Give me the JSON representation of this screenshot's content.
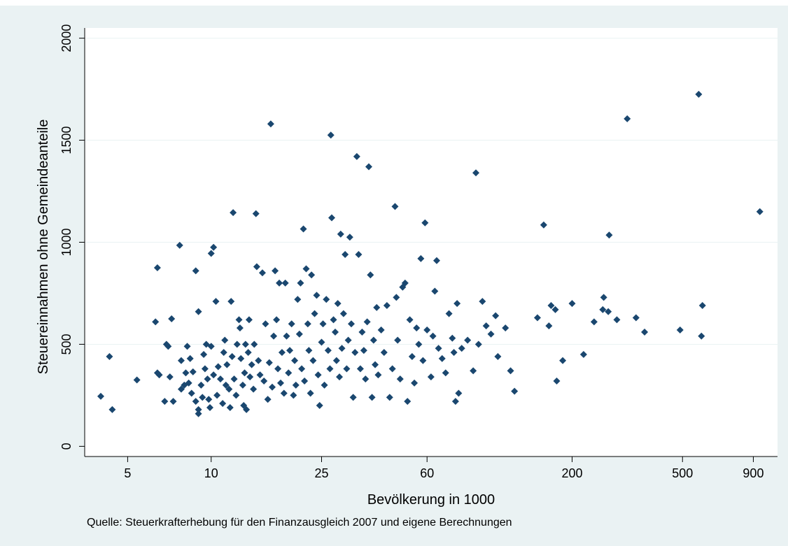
{
  "chart_data": {
    "type": "scatter",
    "xlabel": "Bevölkerung in 1000",
    "ylabel": "Steuereinnahmen ohne Gemeindeanteile",
    "note": "Quelle: Steuerkrafterhebung für den Finanzausgleich 2007 und eigene Berechnungen",
    "x_scale": "log",
    "xlim": [
      3.5,
      1100
    ],
    "ylim": [
      -50,
      2050
    ],
    "x_ticks": [
      5,
      10,
      25,
      60,
      200,
      500,
      900
    ],
    "y_ticks": [
      0,
      500,
      1000,
      1500,
      2000
    ],
    "grid": "horizontal",
    "marker": "diamond",
    "colors": {
      "marker": "#1a476f",
      "plot_bg": "#ffffff",
      "figure_bg": "#eaf2f3",
      "grid": "#eaf2f3"
    },
    "points": [
      [
        4,
        245
      ],
      [
        4.3,
        440
      ],
      [
        4.4,
        180
      ],
      [
        5.4,
        325
      ],
      [
        6.4,
        875
      ],
      [
        6.3,
        610
      ],
      [
        6.4,
        360
      ],
      [
        6.5,
        350
      ],
      [
        6.8,
        220
      ],
      [
        6.9,
        500
      ],
      [
        7.0,
        490
      ],
      [
        7.1,
        340
      ],
      [
        7.2,
        625
      ],
      [
        7.3,
        220
      ],
      [
        7.7,
        985
      ],
      [
        7.8,
        280
      ],
      [
        7.8,
        420
      ],
      [
        8.0,
        300
      ],
      [
        8.1,
        360
      ],
      [
        8.2,
        490
      ],
      [
        8.3,
        310
      ],
      [
        8.4,
        430
      ],
      [
        8.5,
        260
      ],
      [
        8.6,
        365
      ],
      [
        8.8,
        860
      ],
      [
        8.8,
        220
      ],
      [
        9.0,
        660
      ],
      [
        9.0,
        180
      ],
      [
        9.0,
        160
      ],
      [
        9.2,
        300
      ],
      [
        9.3,
        240
      ],
      [
        9.4,
        450
      ],
      [
        9.5,
        380
      ],
      [
        9.6,
        500
      ],
      [
        9.7,
        330
      ],
      [
        9.8,
        230
      ],
      [
        9.9,
        190
      ],
      [
        10.0,
        490
      ],
      [
        10.0,
        945
      ],
      [
        10.2,
        975
      ],
      [
        10.2,
        350
      ],
      [
        10.4,
        710
      ],
      [
        10.5,
        250
      ],
      [
        10.6,
        390
      ],
      [
        10.8,
        330
      ],
      [
        11.0,
        210
      ],
      [
        11.1,
        460
      ],
      [
        11.2,
        520
      ],
      [
        11.3,
        300
      ],
      [
        11.4,
        400
      ],
      [
        11.6,
        280
      ],
      [
        11.7,
        190
      ],
      [
        11.8,
        710
      ],
      [
        11.9,
        440
      ],
      [
        12.0,
        1145
      ],
      [
        12.1,
        330
      ],
      [
        12.3,
        250
      ],
      [
        12.4,
        500
      ],
      [
        12.6,
        620
      ],
      [
        12.7,
        580
      ],
      [
        12.8,
        430
      ],
      [
        13.0,
        300
      ],
      [
        13.1,
        200
      ],
      [
        13.2,
        360
      ],
      [
        13.3,
        500
      ],
      [
        13.4,
        180
      ],
      [
        13.6,
        460
      ],
      [
        13.7,
        620
      ],
      [
        13.8,
        340
      ],
      [
        14.0,
        400
      ],
      [
        14.2,
        280
      ],
      [
        14.3,
        500
      ],
      [
        14.5,
        1140
      ],
      [
        14.6,
        880
      ],
      [
        14.8,
        420
      ],
      [
        15.0,
        350
      ],
      [
        15.3,
        850
      ],
      [
        15.5,
        320
      ],
      [
        15.7,
        600
      ],
      [
        16.0,
        230
      ],
      [
        16.2,
        410
      ],
      [
        16.4,
        1580
      ],
      [
        16.6,
        290
      ],
      [
        16.8,
        540
      ],
      [
        17.0,
        860
      ],
      [
        17.2,
        620
      ],
      [
        17.4,
        380
      ],
      [
        17.6,
        800
      ],
      [
        17.8,
        310
      ],
      [
        18.0,
        460
      ],
      [
        18.3,
        260
      ],
      [
        18.5,
        800
      ],
      [
        18.7,
        540
      ],
      [
        19.0,
        360
      ],
      [
        19.2,
        470
      ],
      [
        19.5,
        600
      ],
      [
        19.8,
        250
      ],
      [
        20.0,
        420
      ],
      [
        20.2,
        300
      ],
      [
        20.5,
        720
      ],
      [
        20.8,
        550
      ],
      [
        21.0,
        800
      ],
      [
        21.2,
        380
      ],
      [
        21.5,
        1065
      ],
      [
        21.7,
        320
      ],
      [
        22.0,
        870
      ],
      [
        22.3,
        600
      ],
      [
        22.5,
        470
      ],
      [
        22.8,
        260
      ],
      [
        23.0,
        840
      ],
      [
        23.3,
        420
      ],
      [
        23.6,
        650
      ],
      [
        24.0,
        740
      ],
      [
        24.3,
        350
      ],
      [
        24.6,
        200
      ],
      [
        25.0,
        510
      ],
      [
        25.3,
        600
      ],
      [
        25.6,
        300
      ],
      [
        26.0,
        720
      ],
      [
        26.4,
        470
      ],
      [
        26.8,
        380
      ],
      [
        27.0,
        1525
      ],
      [
        27.2,
        1120
      ],
      [
        27.6,
        620
      ],
      [
        28.0,
        560
      ],
      [
        28.3,
        420
      ],
      [
        28.6,
        700
      ],
      [
        29.0,
        340
      ],
      [
        29.3,
        1040
      ],
      [
        29.6,
        480
      ],
      [
        30.0,
        650
      ],
      [
        30.4,
        940
      ],
      [
        30.8,
        380
      ],
      [
        31.2,
        520
      ],
      [
        31.6,
        1025
      ],
      [
        32.0,
        600
      ],
      [
        32.5,
        240
      ],
      [
        33.0,
        460
      ],
      [
        33.5,
        1420
      ],
      [
        34.0,
        940
      ],
      [
        34.5,
        380
      ],
      [
        35.0,
        560
      ],
      [
        35.5,
        470
      ],
      [
        36.0,
        330
      ],
      [
        36.5,
        610
      ],
      [
        37.0,
        1370
      ],
      [
        37.5,
        840
      ],
      [
        38.0,
        240
      ],
      [
        38.5,
        520
      ],
      [
        39.0,
        400
      ],
      [
        39.5,
        680
      ],
      [
        40.0,
        350
      ],
      [
        41.0,
        570
      ],
      [
        42.0,
        460
      ],
      [
        43.0,
        690
      ],
      [
        44.0,
        240
      ],
      [
        45.0,
        380
      ],
      [
        46.0,
        1175
      ],
      [
        46.5,
        730
      ],
      [
        47.0,
        520
      ],
      [
        48.0,
        330
      ],
      [
        49.0,
        780
      ],
      [
        50.0,
        800
      ],
      [
        51.0,
        220
      ],
      [
        52.0,
        620
      ],
      [
        53.0,
        440
      ],
      [
        54.0,
        310
      ],
      [
        55.0,
        580
      ],
      [
        56.0,
        500
      ],
      [
        57.0,
        920
      ],
      [
        58.0,
        420
      ],
      [
        59.0,
        1095
      ],
      [
        60.0,
        570
      ],
      [
        62.0,
        340
      ],
      [
        63.0,
        540
      ],
      [
        64.0,
        760
      ],
      [
        65.0,
        910
      ],
      [
        66.0,
        480
      ],
      [
        68.0,
        430
      ],
      [
        70.0,
        360
      ],
      [
        72.0,
        650
      ],
      [
        74.0,
        530
      ],
      [
        75.0,
        460
      ],
      [
        76.0,
        220
      ],
      [
        77.0,
        700
      ],
      [
        78.0,
        260
      ],
      [
        80.0,
        480
      ],
      [
        84.0,
        520
      ],
      [
        88.0,
        370
      ],
      [
        90.0,
        1340
      ],
      [
        92.0,
        500
      ],
      [
        95.0,
        710
      ],
      [
        98.0,
        590
      ],
      [
        102.0,
        550
      ],
      [
        106.0,
        640
      ],
      [
        108.0,
        440
      ],
      [
        115.0,
        580
      ],
      [
        120.0,
        370
      ],
      [
        124.0,
        270
      ],
      [
        150.0,
        630
      ],
      [
        158.0,
        1085
      ],
      [
        165.0,
        590
      ],
      [
        168.0,
        690
      ],
      [
        174.0,
        670
      ],
      [
        176.0,
        320
      ],
      [
        185.0,
        420
      ],
      [
        200.0,
        700
      ],
      [
        220.0,
        450
      ],
      [
        240.0,
        610
      ],
      [
        258.0,
        670
      ],
      [
        260.0,
        730
      ],
      [
        270.0,
        660
      ],
      [
        272.0,
        1035
      ],
      [
        290.0,
        620
      ],
      [
        316.0,
        1605
      ],
      [
        340.0,
        630
      ],
      [
        365.0,
        560
      ],
      [
        490.0,
        570
      ],
      [
        572.0,
        1725
      ],
      [
        585.0,
        540
      ],
      [
        590.0,
        690
      ],
      [
        950.0,
        1150
      ]
    ]
  }
}
